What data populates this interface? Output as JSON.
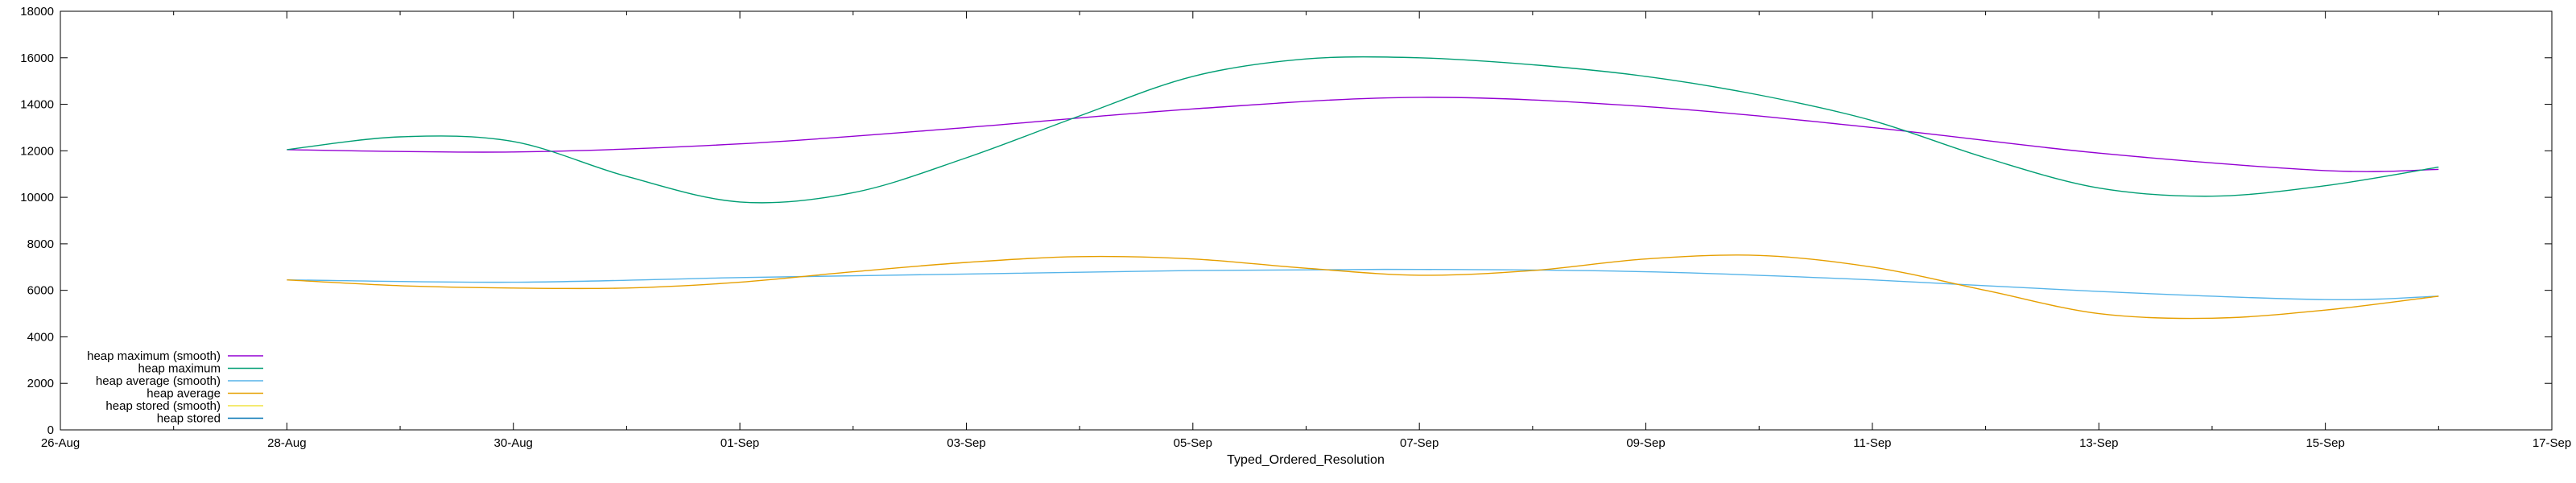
{
  "chart_data": {
    "type": "line",
    "title": "",
    "xlabel": "Typed_Ordered_Resolution",
    "ylabel": "",
    "x_ticks": [
      "26-Aug",
      "28-Aug",
      "30-Aug",
      "01-Sep",
      "03-Sep",
      "05-Sep",
      "07-Sep",
      "09-Sep",
      "11-Sep",
      "13-Sep",
      "15-Sep",
      "17-Sep"
    ],
    "xlim": [
      "2024-08-26",
      "2024-09-17"
    ],
    "ylim": [
      0,
      18000
    ],
    "y_ticks": [
      "0",
      "2000",
      "4000",
      "6000",
      "8000",
      "10000",
      "12000",
      "14000",
      "16000",
      "18000"
    ],
    "grid": false,
    "legend_position": "bottom-left",
    "series": [
      {
        "name": "heap maximum (smooth)",
        "color": "#9400d3",
        "x": [
          "2024-08-28",
          "2024-08-30",
          "2024-09-01",
          "2024-09-03",
          "2024-09-05",
          "2024-09-07",
          "2024-09-09",
          "2024-09-11",
          "2024-09-13",
          "2024-09-15",
          "2024-09-16"
        ],
        "values": [
          12050,
          11950,
          12300,
          13000,
          13800,
          14300,
          13900,
          13000,
          11900,
          11150,
          11200
        ]
      },
      {
        "name": "heap maximum",
        "color": "#009e73",
        "x": [
          "2024-08-28",
          "2024-08-29",
          "2024-08-30",
          "2024-08-31",
          "2024-09-01",
          "2024-09-02",
          "2024-09-03",
          "2024-09-04",
          "2024-09-05",
          "2024-09-06",
          "2024-09-07",
          "2024-09-08",
          "2024-09-09",
          "2024-09-10",
          "2024-09-11",
          "2024-09-12",
          "2024-09-13",
          "2024-09-14",
          "2024-09-15",
          "2024-09-16"
        ],
        "values": [
          12050,
          12600,
          12400,
          10900,
          9800,
          10200,
          11700,
          13500,
          15200,
          15950,
          16000,
          15700,
          15200,
          14400,
          13300,
          11700,
          10400,
          10050,
          10500,
          11300
        ]
      },
      {
        "name": "heap average (smooth)",
        "color": "#56b4e9",
        "x": [
          "2024-08-28",
          "2024-08-30",
          "2024-09-01",
          "2024-09-03",
          "2024-09-05",
          "2024-09-07",
          "2024-09-09",
          "2024-09-11",
          "2024-09-13",
          "2024-09-15",
          "2024-09-16"
        ],
        "values": [
          6450,
          6350,
          6550,
          6700,
          6850,
          6900,
          6800,
          6450,
          5950,
          5600,
          5750
        ]
      },
      {
        "name": "heap average",
        "color": "#e69f00",
        "x": [
          "2024-08-28",
          "2024-08-29",
          "2024-08-30",
          "2024-08-31",
          "2024-09-01",
          "2024-09-02",
          "2024-09-03",
          "2024-09-04",
          "2024-09-05",
          "2024-09-06",
          "2024-09-07",
          "2024-09-08",
          "2024-09-09",
          "2024-09-10",
          "2024-09-11",
          "2024-09-12",
          "2024-09-13",
          "2024-09-14",
          "2024-09-15",
          "2024-09-16"
        ],
        "values": [
          6450,
          6200,
          6100,
          6100,
          6350,
          6800,
          7200,
          7450,
          7350,
          6950,
          6650,
          6850,
          7350,
          7500,
          7000,
          6000,
          5000,
          4800,
          5150,
          5750
        ]
      },
      {
        "name": "heap stored (smooth)",
        "color": "#f0e442",
        "x": [],
        "values": []
      },
      {
        "name": "heap stored",
        "color": "#0072b2",
        "x": [],
        "values": []
      }
    ]
  }
}
